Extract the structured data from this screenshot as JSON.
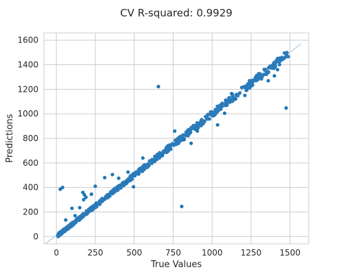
{
  "chart_data": {
    "type": "scatter",
    "title": "CV R-squared: 0.9929",
    "xlabel": "True Values",
    "ylabel": "Predictions",
    "xlim": [
      -80,
      1620
    ],
    "ylim": [
      -60,
      1660
    ],
    "xticks": [
      0,
      250,
      500,
      750,
      1000,
      1250,
      1500
    ],
    "yticks": [
      0,
      200,
      400,
      600,
      800,
      1000,
      1200,
      1400,
      1600
    ],
    "grid": true,
    "reference_line": {
      "from": [
        -70,
        -60
      ],
      "to": [
        1570,
        1570
      ],
      "color": "#c6dbef"
    },
    "point_color": "#1f77b4",
    "dense_band_color": "#2b7bba",
    "outliers": [
      [
        25,
        385
      ],
      [
        40,
        400
      ],
      [
        655,
        1222
      ],
      [
        805,
        245
      ],
      [
        1475,
        1048
      ],
      [
        170,
        360
      ],
      [
        180,
        340
      ],
      [
        175,
        300
      ],
      [
        190,
        320
      ],
      [
        225,
        345
      ],
      [
        250,
        410
      ],
      [
        360,
        505
      ],
      [
        400,
        475
      ],
      [
        450,
        445
      ],
      [
        495,
        405
      ],
      [
        680,
        660
      ],
      [
        760,
        860
      ],
      [
        905,
        860
      ],
      [
        1035,
        910
      ],
      [
        1080,
        1005
      ],
      [
        1150,
        1120
      ],
      [
        1210,
        1150
      ],
      [
        1125,
        1165
      ],
      [
        1360,
        1270
      ],
      [
        1400,
        1310
      ],
      [
        865,
        760
      ],
      [
        555,
        640
      ],
      [
        460,
        525
      ],
      [
        100,
        230
      ],
      [
        150,
        235
      ],
      [
        120,
        170
      ],
      [
        60,
        135
      ],
      [
        310,
        480
      ],
      [
        1420,
        1360
      ],
      [
        820,
        790
      ]
    ]
  }
}
